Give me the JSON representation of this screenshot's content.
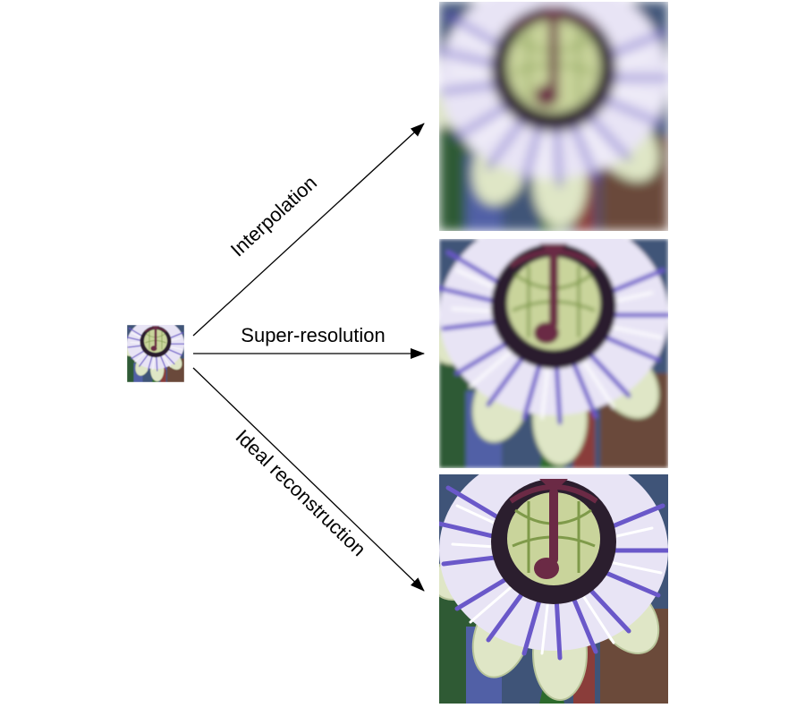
{
  "diagram": {
    "arrows": [
      {
        "id": "interpolation",
        "label": "Interpolation"
      },
      {
        "id": "super-resolution",
        "label": "Super-resolution"
      },
      {
        "id": "ideal-reconstruction",
        "label": "Ideal reconstruction"
      }
    ],
    "images": {
      "input": {
        "content": "low-resolution passion flower"
      },
      "interpolation": {
        "content": "blurry upscaled passion flower"
      },
      "super-resolution": {
        "content": "sharper upscaled passion flower"
      },
      "ideal-reconstruction": {
        "content": "high-resolution passion flower"
      }
    }
  }
}
